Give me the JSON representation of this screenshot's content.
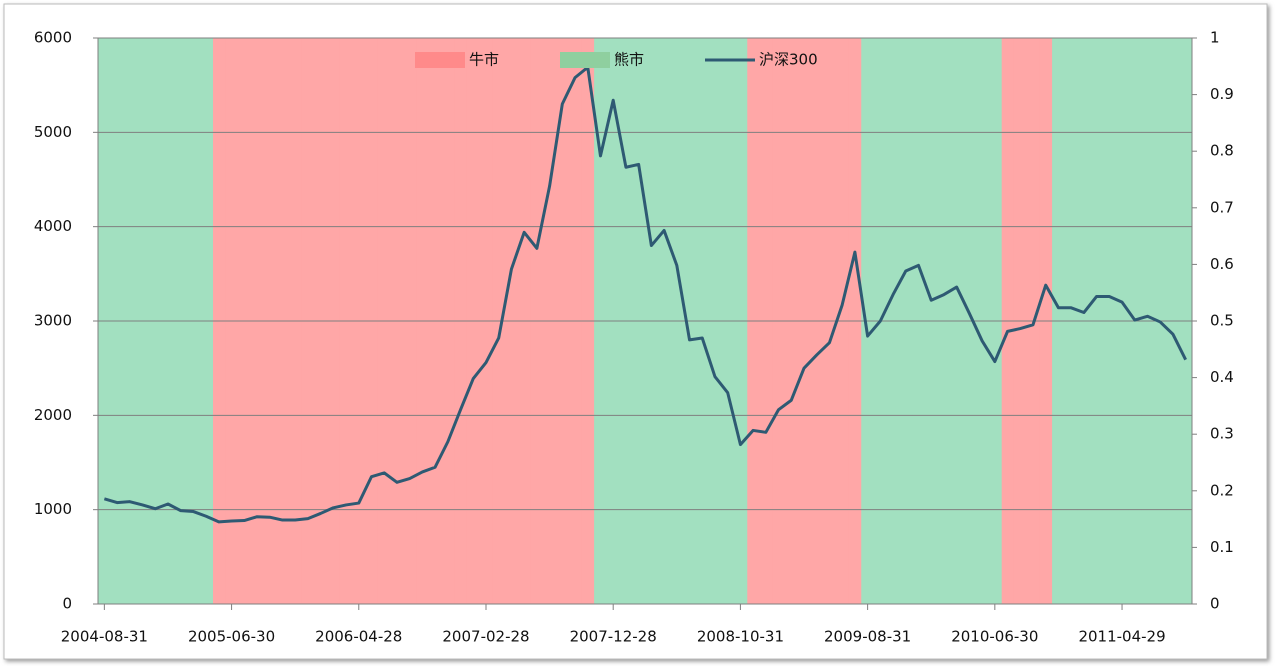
{
  "chart_data": {
    "type": "combo",
    "categories": [
      "2004-08-31",
      null,
      null,
      null,
      null,
      null,
      null,
      null,
      null,
      null,
      "2005-06-30",
      null,
      null,
      null,
      null,
      null,
      null,
      null,
      null,
      null,
      "2006-04-28",
      null,
      null,
      null,
      null,
      null,
      null,
      null,
      null,
      null,
      "2007-02-28",
      null,
      null,
      null,
      null,
      null,
      null,
      null,
      null,
      null,
      "2007-12-28",
      null,
      null,
      null,
      null,
      null,
      null,
      null,
      null,
      null,
      "2008-10-31",
      null,
      null,
      null,
      null,
      null,
      null,
      null,
      null,
      null,
      "2009-08-31",
      null,
      null,
      null,
      null,
      null,
      null,
      null,
      null,
      null,
      "2010-06-30",
      null,
      null,
      null,
      null,
      null,
      null,
      null,
      null,
      null,
      "2011-04-29",
      null,
      null,
      null,
      null,
      null
    ],
    "series": [
      {
        "name": "牛市",
        "type": "bar",
        "axis": "y2",
        "color": "#ffa7a7",
        "legend_color": "#ff8a8a",
        "values": [
          0,
          0,
          0,
          0,
          0,
          0,
          0,
          0,
          0,
          1,
          1,
          1,
          1,
          1,
          1,
          1,
          1,
          1,
          1,
          1,
          1,
          1,
          1,
          1,
          1,
          1,
          1,
          1,
          1,
          1,
          1,
          1,
          1,
          1,
          1,
          1,
          1,
          1,
          1,
          0,
          0,
          0,
          0,
          0,
          0,
          0,
          0,
          0,
          0,
          0,
          0,
          1,
          1,
          1,
          1,
          1,
          1,
          1,
          1,
          1,
          0,
          0,
          0,
          0,
          0,
          0,
          0,
          0,
          0,
          0,
          0,
          1,
          1,
          1,
          1,
          0,
          0,
          0,
          0,
          0,
          0,
          0,
          0,
          0,
          0,
          0
        ]
      },
      {
        "name": "熊市",
        "type": "bar",
        "axis": "y2",
        "color": "#a2e0c0",
        "legend_color": "#8fcf9f",
        "values": [
          1,
          1,
          1,
          1,
          1,
          1,
          1,
          1,
          1,
          0,
          0,
          0,
          0,
          0,
          0,
          0,
          0,
          0,
          0,
          0,
          0,
          0,
          0,
          0,
          0,
          0,
          0,
          0,
          0,
          0,
          0,
          0,
          0,
          0,
          0,
          0,
          0,
          0,
          0,
          1,
          1,
          1,
          1,
          1,
          1,
          1,
          1,
          1,
          1,
          1,
          1,
          0,
          0,
          0,
          0,
          0,
          0,
          0,
          0,
          0,
          1,
          1,
          1,
          1,
          1,
          1,
          1,
          1,
          1,
          1,
          1,
          0,
          0,
          0,
          0,
          1,
          1,
          1,
          1,
          1,
          1,
          1,
          1,
          1,
          1,
          1
        ]
      },
      {
        "name": "沪深300",
        "type": "line",
        "color": "#2e5a73",
        "values": [
          1115,
          1075,
          1085,
          1050,
          1010,
          1060,
          990,
          980,
          930,
          870,
          880,
          885,
          925,
          920,
          890,
          890,
          905,
          960,
          1020,
          1050,
          1070,
          1350,
          1390,
          1290,
          1330,
          1400,
          1450,
          1720,
          2060,
          2390,
          2560,
          2820,
          3550,
          3940,
          3770,
          4430,
          5300,
          5580,
          5690,
          4750,
          5340,
          4630,
          4660,
          3800,
          3960,
          3590,
          2800,
          2820,
          2410,
          2240,
          1690,
          1840,
          1820,
          2060,
          2160,
          2500,
          2640,
          2770,
          3170,
          3730,
          2840,
          3000,
          3280,
          3530,
          3590,
          3220,
          3280,
          3360,
          3080,
          2790,
          2570,
          2890,
          2920,
          2960,
          3380,
          3140,
          3140,
          3090,
          3260,
          3260,
          3200,
          3010,
          3050,
          2990,
          2860,
          2590
        ]
      }
    ],
    "ylim": [
      0,
      6000
    ],
    "yticks": [
      0,
      1000,
      2000,
      3000,
      4000,
      5000,
      6000
    ],
    "y2lim": [
      0,
      1
    ],
    "y2ticks": [
      0,
      0.1,
      0.2,
      0.3,
      0.4,
      0.5,
      0.6,
      0.7,
      0.8,
      0.9,
      1
    ],
    "grid": true,
    "legend": "top"
  }
}
